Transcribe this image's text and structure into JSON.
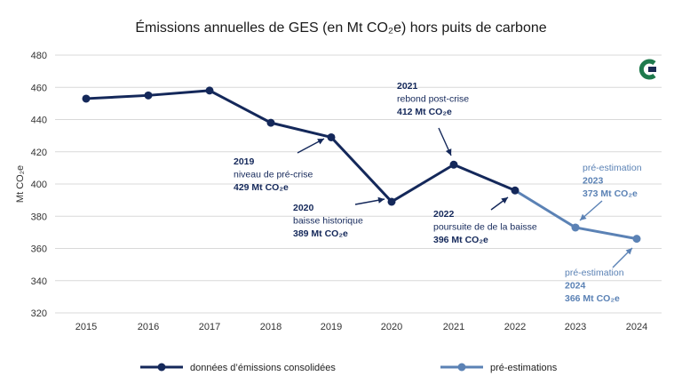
{
  "chart_data": {
    "type": "line",
    "title": "Émissions annuelles de GES (en Mt CO₂e) hors puits de carbone",
    "ylabel": "Mt CO₂e",
    "ylim": [
      320,
      480
    ],
    "yticks": [
      320,
      340,
      360,
      380,
      400,
      420,
      440,
      460,
      480
    ],
    "categories": [
      "2015",
      "2016",
      "2017",
      "2018",
      "2019",
      "2020",
      "2021",
      "2022",
      "2023",
      "2024"
    ],
    "grid": true,
    "legend_position": "bottom",
    "series": [
      {
        "name": "données d’émissions consolidées",
        "color": "#14285a",
        "x": [
          "2015",
          "2016",
          "2017",
          "2018",
          "2019",
          "2020",
          "2021",
          "2022"
        ],
        "values": [
          453,
          455,
          458,
          438,
          429,
          389,
          412,
          396
        ]
      },
      {
        "name": "pré-estimations",
        "color": "#5b82b5",
        "x": [
          "2022",
          "2023",
          "2024"
        ],
        "values": [
          396,
          373,
          366
        ]
      }
    ],
    "annotations": [
      {
        "target": "2019",
        "color": "#14285a",
        "lines": [
          "2019",
          "niveau de pré-crise",
          "429 Mt CO₂e"
        ]
      },
      {
        "target": "2020",
        "color": "#14285a",
        "lines": [
          "2020",
          "baisse historique",
          "389 Mt CO₂e"
        ]
      },
      {
        "target": "2021",
        "color": "#14285a",
        "lines": [
          "2021",
          "rebond post-crise",
          "412 Mt CO₂e"
        ]
      },
      {
        "target": "2022",
        "color": "#14285a",
        "lines": [
          "2022",
          "poursuite de de la baisse",
          "396 Mt CO₂e"
        ]
      },
      {
        "target": "2023",
        "color": "#5b82b5",
        "lines": [
          "pré-estimation",
          "2023",
          "373 Mt CO₂e"
        ]
      },
      {
        "target": "2024",
        "color": "#5b82b5",
        "lines": [
          "pré-estimation",
          "2024",
          "366 Mt CO₂e"
        ]
      }
    ]
  },
  "logo": {
    "name": "citepa-logo-icon",
    "colors": [
      "#1f7a4d",
      "#1b2b52"
    ]
  }
}
